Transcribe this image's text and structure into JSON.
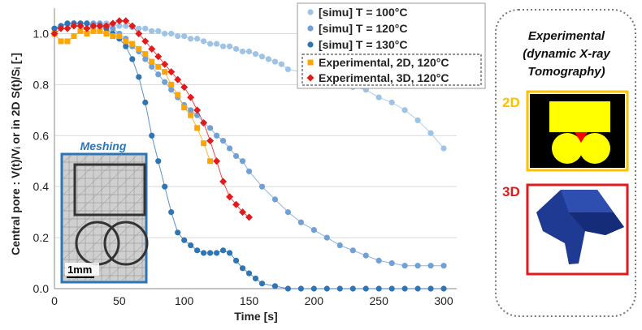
{
  "chart_data": {
    "type": "scatter",
    "xlabel": "Time [s]",
    "ylabel": "Central pore : V(t)/Vᵢ or in 2D S(t)/Sᵢ  [-]",
    "xlim": [
      0,
      310
    ],
    "ylim": [
      0,
      1.1
    ],
    "xticks": [
      0,
      50,
      100,
      150,
      200,
      250,
      300
    ],
    "yticks": [
      0.0,
      0.2,
      0.4,
      0.6,
      0.8,
      1.0
    ],
    "xtick_labels": [
      "0",
      "50",
      "100",
      "150",
      "200",
      "250",
      "300"
    ],
    "ytick_labels": [
      "0.0",
      "0.2",
      "0.4",
      "0.6",
      "0.8",
      "1.0"
    ],
    "grid": "horizontal",
    "legend_position": "top-right",
    "series": [
      {
        "name": "[simu] T = 100°C",
        "color": "#9DC3E6",
        "marker": "circle",
        "x": [
          0,
          5,
          10,
          15,
          20,
          25,
          30,
          35,
          40,
          45,
          50,
          55,
          60,
          65,
          70,
          75,
          80,
          85,
          90,
          95,
          100,
          105,
          110,
          115,
          120,
          125,
          130,
          135,
          140,
          145,
          150,
          155,
          160,
          165,
          170,
          175,
          180,
          190,
          200,
          210,
          220,
          230,
          240,
          250,
          260,
          270,
          280,
          290,
          300
        ],
        "y": [
          1.02,
          1.03,
          1.035,
          1.04,
          1.04,
          1.04,
          1.04,
          1.04,
          1.04,
          1.035,
          1.03,
          1.03,
          1.025,
          1.02,
          1.02,
          1.01,
          1.01,
          1.0,
          1.0,
          0.99,
          0.99,
          0.98,
          0.98,
          0.97,
          0.96,
          0.96,
          0.95,
          0.95,
          0.94,
          0.93,
          0.93,
          0.92,
          0.91,
          0.9,
          0.89,
          0.88,
          0.86,
          0.85,
          0.83,
          0.82,
          0.81,
          0.79,
          0.78,
          0.75,
          0.73,
          0.7,
          0.66,
          0.61,
          0.55
        ]
      },
      {
        "name": "[simu] T = 120°C",
        "color": "#6FA0D8",
        "marker": "circle",
        "x": [
          0,
          5,
          10,
          15,
          20,
          25,
          30,
          35,
          40,
          45,
          50,
          55,
          60,
          65,
          70,
          75,
          80,
          85,
          90,
          95,
          100,
          105,
          110,
          115,
          120,
          125,
          130,
          135,
          140,
          145,
          150,
          160,
          170,
          180,
          190,
          200,
          210,
          220,
          230,
          240,
          250,
          260,
          270,
          280,
          290,
          300
        ],
        "y": [
          1.02,
          1.03,
          1.04,
          1.04,
          1.04,
          1.04,
          1.04,
          1.04,
          1.03,
          1.02,
          1.0,
          0.98,
          0.95,
          0.93,
          0.9,
          0.87,
          0.84,
          0.81,
          0.78,
          0.75,
          0.72,
          0.7,
          0.68,
          0.65,
          0.63,
          0.6,
          0.58,
          0.55,
          0.52,
          0.5,
          0.46,
          0.4,
          0.35,
          0.3,
          0.26,
          0.23,
          0.2,
          0.17,
          0.15,
          0.13,
          0.11,
          0.1,
          0.09,
          0.09,
          0.09,
          0.09
        ]
      },
      {
        "name": "[simu] T = 130°C",
        "color": "#2E75B6",
        "marker": "circle",
        "x": [
          0,
          5,
          10,
          15,
          20,
          25,
          30,
          35,
          40,
          45,
          50,
          55,
          60,
          65,
          70,
          75,
          80,
          85,
          90,
          95,
          100,
          105,
          110,
          115,
          120,
          125,
          130,
          135,
          140,
          145,
          150,
          155,
          160,
          170,
          180,
          190,
          200,
          210,
          220,
          230,
          240,
          250,
          260,
          270,
          280,
          290,
          300
        ],
        "y": [
          1.02,
          1.03,
          1.04,
          1.04,
          1.04,
          1.04,
          1.03,
          1.03,
          1.02,
          1.0,
          0.98,
          0.95,
          0.9,
          0.83,
          0.73,
          0.6,
          0.5,
          0.4,
          0.3,
          0.22,
          0.19,
          0.17,
          0.15,
          0.14,
          0.14,
          0.14,
          0.15,
          0.14,
          0.11,
          0.08,
          0.06,
          0.04,
          0.02,
          0.01,
          0.0,
          0.0,
          0.0,
          0.0,
          0.0,
          0.0,
          0.0,
          0.0,
          0.0,
          0.0,
          0.0,
          0.0,
          0.0
        ]
      },
      {
        "name": "Experimental, 2D, 120°C",
        "color": "#FFA500",
        "marker": "square",
        "x": [
          0,
          5,
          10,
          15,
          20,
          25,
          30,
          35,
          40,
          45,
          50,
          55,
          60,
          65,
          70,
          75,
          80,
          85,
          90,
          95,
          100,
          105,
          110,
          115,
          120
        ],
        "y": [
          1.0,
          0.97,
          0.97,
          0.99,
          1.01,
          1.0,
          1.01,
          1.01,
          1.0,
          0.99,
          0.99,
          0.97,
          0.96,
          0.94,
          0.92,
          0.89,
          0.87,
          0.85,
          0.8,
          0.76,
          0.71,
          0.68,
          0.63,
          0.57,
          0.5
        ]
      },
      {
        "name": "Experimental, 3D, 120°C",
        "color": "#E31A1C",
        "marker": "diamond",
        "x": [
          0,
          5,
          10,
          15,
          20,
          25,
          30,
          35,
          40,
          45,
          50,
          55,
          60,
          65,
          70,
          75,
          80,
          85,
          90,
          95,
          100,
          105,
          110,
          115,
          120,
          125,
          130,
          135,
          140,
          145,
          150
        ],
        "y": [
          1.0,
          1.02,
          1.02,
          1.03,
          1.03,
          1.02,
          1.03,
          1.03,
          1.03,
          1.04,
          1.05,
          1.05,
          1.03,
          1.0,
          0.97,
          0.94,
          0.91,
          0.88,
          0.85,
          0.82,
          0.79,
          0.75,
          0.7,
          0.65,
          0.58,
          0.5,
          0.42,
          0.36,
          0.33,
          0.3,
          0.28
        ]
      }
    ]
  },
  "inset": {
    "title": "Meshing",
    "scale_label": "1mm"
  },
  "side_panel": {
    "title_lines": [
      "Experimental",
      "(dynamic X-ray",
      "Tomography)"
    ],
    "label_2d": "2D",
    "label_3d": "3D",
    "color_2d": "#FFC000",
    "color_3d": "#E31A1C"
  }
}
